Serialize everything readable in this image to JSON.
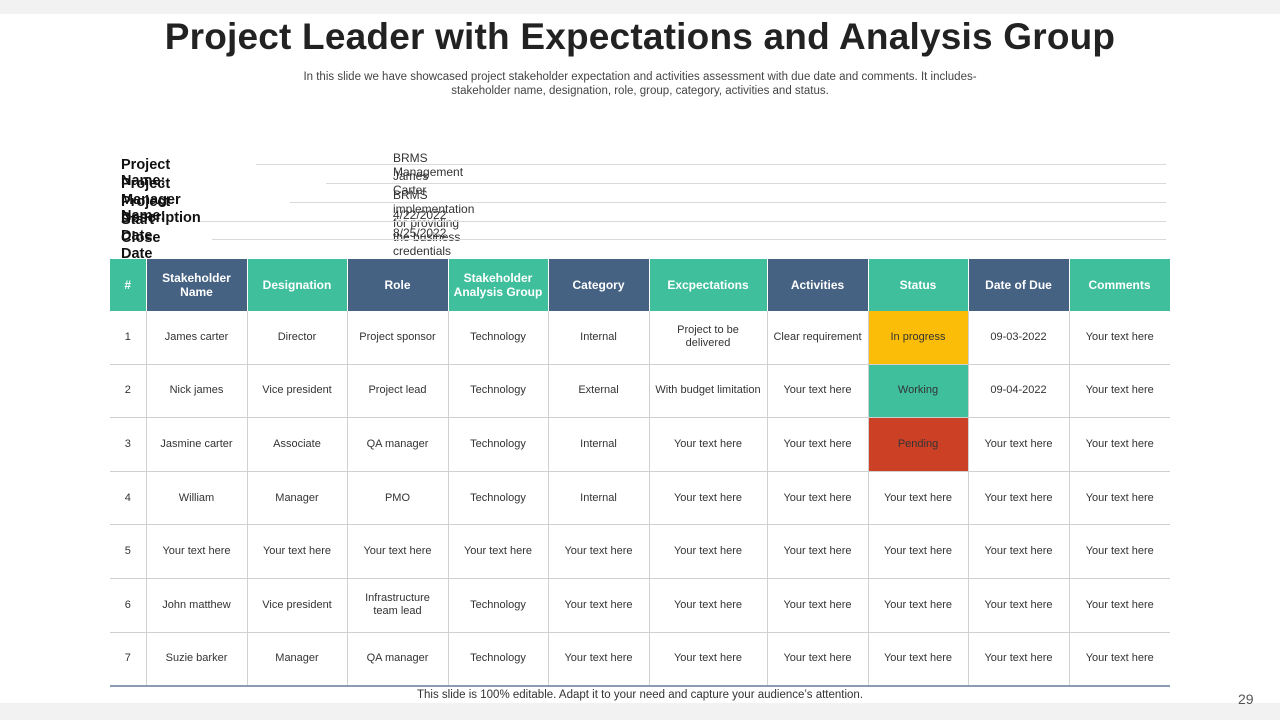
{
  "title": "Project Leader with Expectations and Analysis Group",
  "subtitle": "In this slide we have showcased project stakeholder expectation and activities assessment with due date and comments. It includes- stakeholder name, designation, role, group, category, activities and status.",
  "project_info": [
    {
      "label": "Project Name:",
      "value": "BRMS Management"
    },
    {
      "label": "Project Manager Name:",
      "value": "James Carter"
    },
    {
      "label": "Project Description",
      "value": "BRMS implementation for providing the business credentials"
    },
    {
      "label": "Start Date",
      "value": "4/22/2022"
    },
    {
      "label": "Close Date",
      "value": "8/25/2022"
    }
  ],
  "table": {
    "headers": [
      "#",
      "Stakeholder Name",
      "Designation",
      "Role",
      "Stakeholder Analysis Group",
      "Category",
      "Excpectations",
      "Activities",
      "Status",
      "Date of Due",
      "Comments"
    ],
    "header_colors": {
      "teal": "#3fbf9c",
      "navy": "#456283"
    },
    "rows": [
      [
        "1",
        "James carter",
        "Director",
        "Project sponsor",
        "Technology",
        "Internal",
        "Project to be delivered",
        "Clear requirement",
        "In progress",
        "09-03-2022",
        "Your text here"
      ],
      [
        "2",
        "Nick james",
        "Vice president",
        "Project lead",
        "Technology",
        "External",
        "With budget limitation",
        "Your text here",
        "Working",
        "09-04-2022",
        "Your text here"
      ],
      [
        "3",
        "Jasmine carter",
        "Associate",
        "QA manager",
        "Technology",
        "Internal",
        "Your text here",
        "Your text here",
        "Pending",
        "Your text here",
        "Your text here"
      ],
      [
        "4",
        "William",
        "Manager",
        "PMO",
        "Technology",
        "Internal",
        "Your text here",
        "Your text here",
        "Your text here",
        "Your text here",
        "Your text here"
      ],
      [
        "5",
        "Your text here",
        "Your text here",
        "Your text here",
        "Your text here",
        "Your text here",
        "Your text here",
        "Your text here",
        "Your text here",
        "Your text here",
        "Your text here"
      ],
      [
        "6",
        "John matthew",
        "Vice president",
        "Infrastructure team lead",
        "Technology",
        "Your text here",
        "Your text here",
        "Your text here",
        "Your text here",
        "Your text here",
        "Your text here"
      ],
      [
        "7",
        "Suzie barker",
        "Manager",
        "QA manager",
        "Technology",
        "Your text here",
        "Your text here",
        "Your text here",
        "Your text here",
        "Your text here",
        "Your text here"
      ]
    ],
    "status_colors": {
      "In progress": "#fbbd08",
      "Working": "#3fbf9c",
      "Pending": "#cc4125"
    }
  },
  "footer": "This slide is 100% editable. Adapt it to your need and capture your audience’s attention.",
  "page_number": "29"
}
